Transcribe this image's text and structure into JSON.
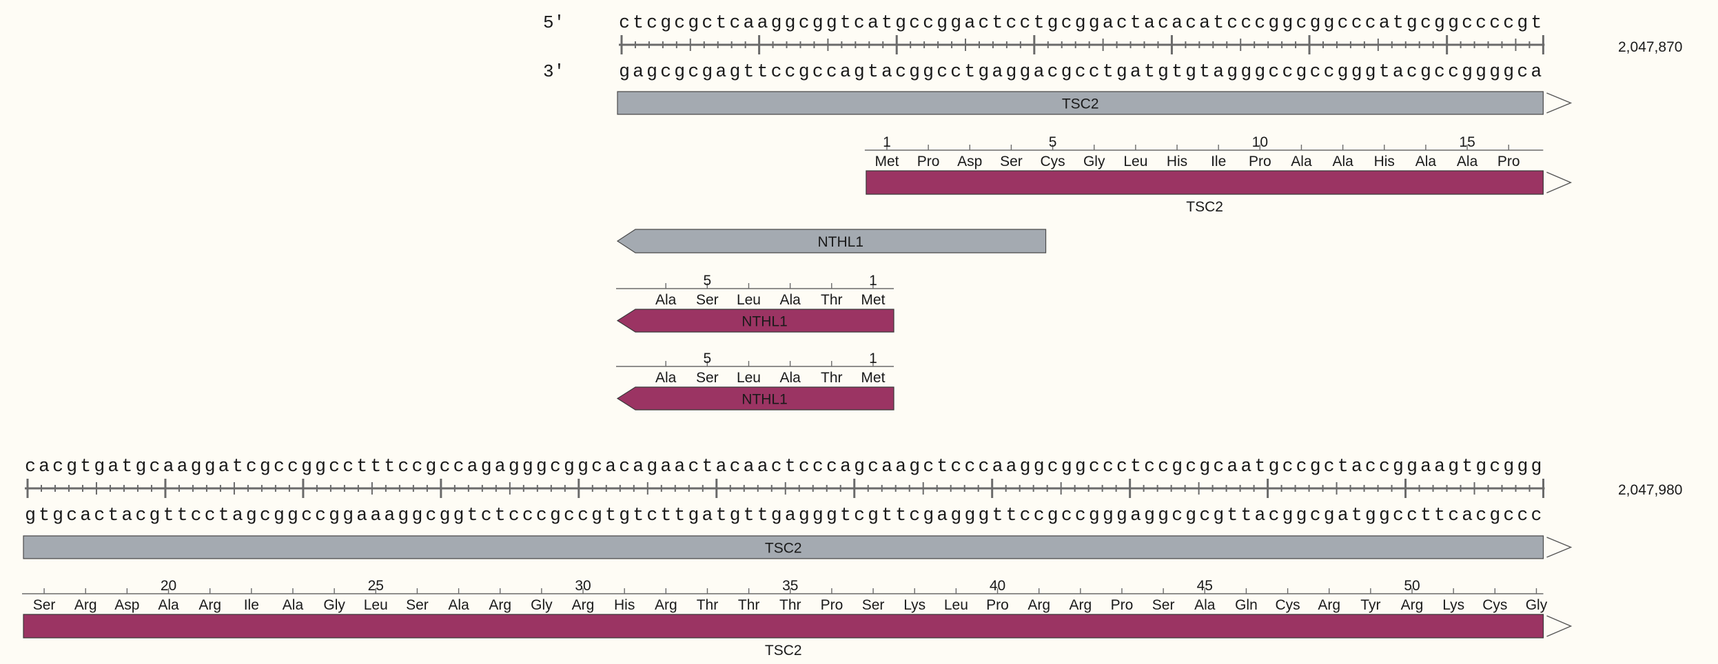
{
  "colors": {
    "background": "#fefcf5",
    "gene": "#a4aab1",
    "gene_stroke": "#4a4a4a",
    "cds": "#9b3463",
    "cds_stroke": "#3a3a3a",
    "ruler": "#6a6a6a"
  },
  "rows": [
    {
      "top_strand_label": "5′",
      "bottom_strand_label": "3′",
      "seq_top": "ctcgcgctcaaggcggtcatgccggactcctgcggactacacatcccggcggcccatgcggccccgt",
      "seq_bottom": "gagcgcgagttccgccagtacggcctgaggacgcctgatgtgtagggccgccgggtacgccggggca",
      "coordinate": "2,047,870",
      "features": [
        {
          "kind": "gene",
          "name": "TSC2",
          "start": 0,
          "end": 67,
          "dir": "fwd",
          "label_inside": true,
          "continues": true
        },
        {
          "kind": "cds",
          "name": "TSC2",
          "start": 18,
          "end": 67,
          "dir": "fwd",
          "label_inside": false,
          "continues": true,
          "aa_start": 18,
          "aa_dir": 1,
          "aa_first_index": 1,
          "aa": [
            "Met",
            "Pro",
            "Asp",
            "Ser",
            "Cys",
            "Gly",
            "Leu",
            "His",
            "Ile",
            "Pro",
            "Ala",
            "Ala",
            "His",
            "Ala",
            "Ala",
            "Pro"
          ],
          "aa_numbers": {
            "1": "1",
            "5": "5",
            "10": "10",
            "15": "15"
          }
        },
        {
          "kind": "gene",
          "name": "NTHL1",
          "start": 0,
          "end": 31,
          "dir": "rev",
          "label_inside": true,
          "continues": false
        },
        {
          "kind": "cds",
          "name": "NTHL1",
          "start": 0,
          "end": 20,
          "dir": "rev",
          "label_inside": true,
          "continues": false,
          "aa_start": 2,
          "aa_dir": -1,
          "aa_first_index": 6,
          "aa": [
            "Ala",
            "Ser",
            "Leu",
            "Ala",
            "Thr",
            "Met"
          ],
          "aa_numbers": {
            "5": "5",
            "1": "1"
          }
        },
        {
          "kind": "cds",
          "name": "NTHL1",
          "start": 0,
          "end": 20,
          "dir": "rev",
          "label_inside": true,
          "continues": false,
          "aa_start": 2,
          "aa_dir": -1,
          "aa_first_index": 6,
          "aa": [
            "Ala",
            "Ser",
            "Leu",
            "Ala",
            "Thr",
            "Met"
          ],
          "aa_numbers": {
            "5": "5",
            "1": "1"
          }
        }
      ]
    },
    {
      "top_strand_label": "",
      "bottom_strand_label": "",
      "seq_top": "cacgtgatgcaaggatcgccggcctttccgccagagggcggcacagaactacaactcccagcaagctcccaaggcggccctccgcgcaatgccgctaccggaagtgcggg",
      "seq_bottom": "gtgcactacgttcctagcggccggaaaggcggtctcccgccgtgtcttgatgttgagggtcgttcgagggttccgccgggaggcgcgttacggcgatggccttcacgccc",
      "coordinate": "2,047,980",
      "features": [
        {
          "kind": "gene",
          "name": "TSC2",
          "start": 0,
          "end": 110,
          "dir": "fwd",
          "label_inside": true,
          "continues": true
        },
        {
          "kind": "cds",
          "name": "TSC2",
          "start": 0,
          "end": 110,
          "dir": "fwd",
          "label_inside": false,
          "continues": true,
          "aa_start": 0,
          "aa_dir": 1,
          "aa_first_index": 17,
          "aa": [
            "Ser",
            "Arg",
            "Asp",
            "Ala",
            "Arg",
            "Ile",
            "Ala",
            "Gly",
            "Leu",
            "Ser",
            "Ala",
            "Arg",
            "Gly",
            "Arg",
            "His",
            "Arg",
            "Thr",
            "Thr",
            "Thr",
            "Pro",
            "Ser",
            "Lys",
            "Leu",
            "Pro",
            "Arg",
            "Arg",
            "Pro",
            "Ser",
            "Ala",
            "Gln",
            "Cys",
            "Arg",
            "Tyr",
            "Arg",
            "Lys",
            "Cys",
            "Gly"
          ],
          "aa_numbers": {
            "20": "20",
            "25": "25",
            "30": "30",
            "35": "35",
            "40": "40",
            "45": "45",
            "50": "50"
          }
        }
      ]
    }
  ]
}
